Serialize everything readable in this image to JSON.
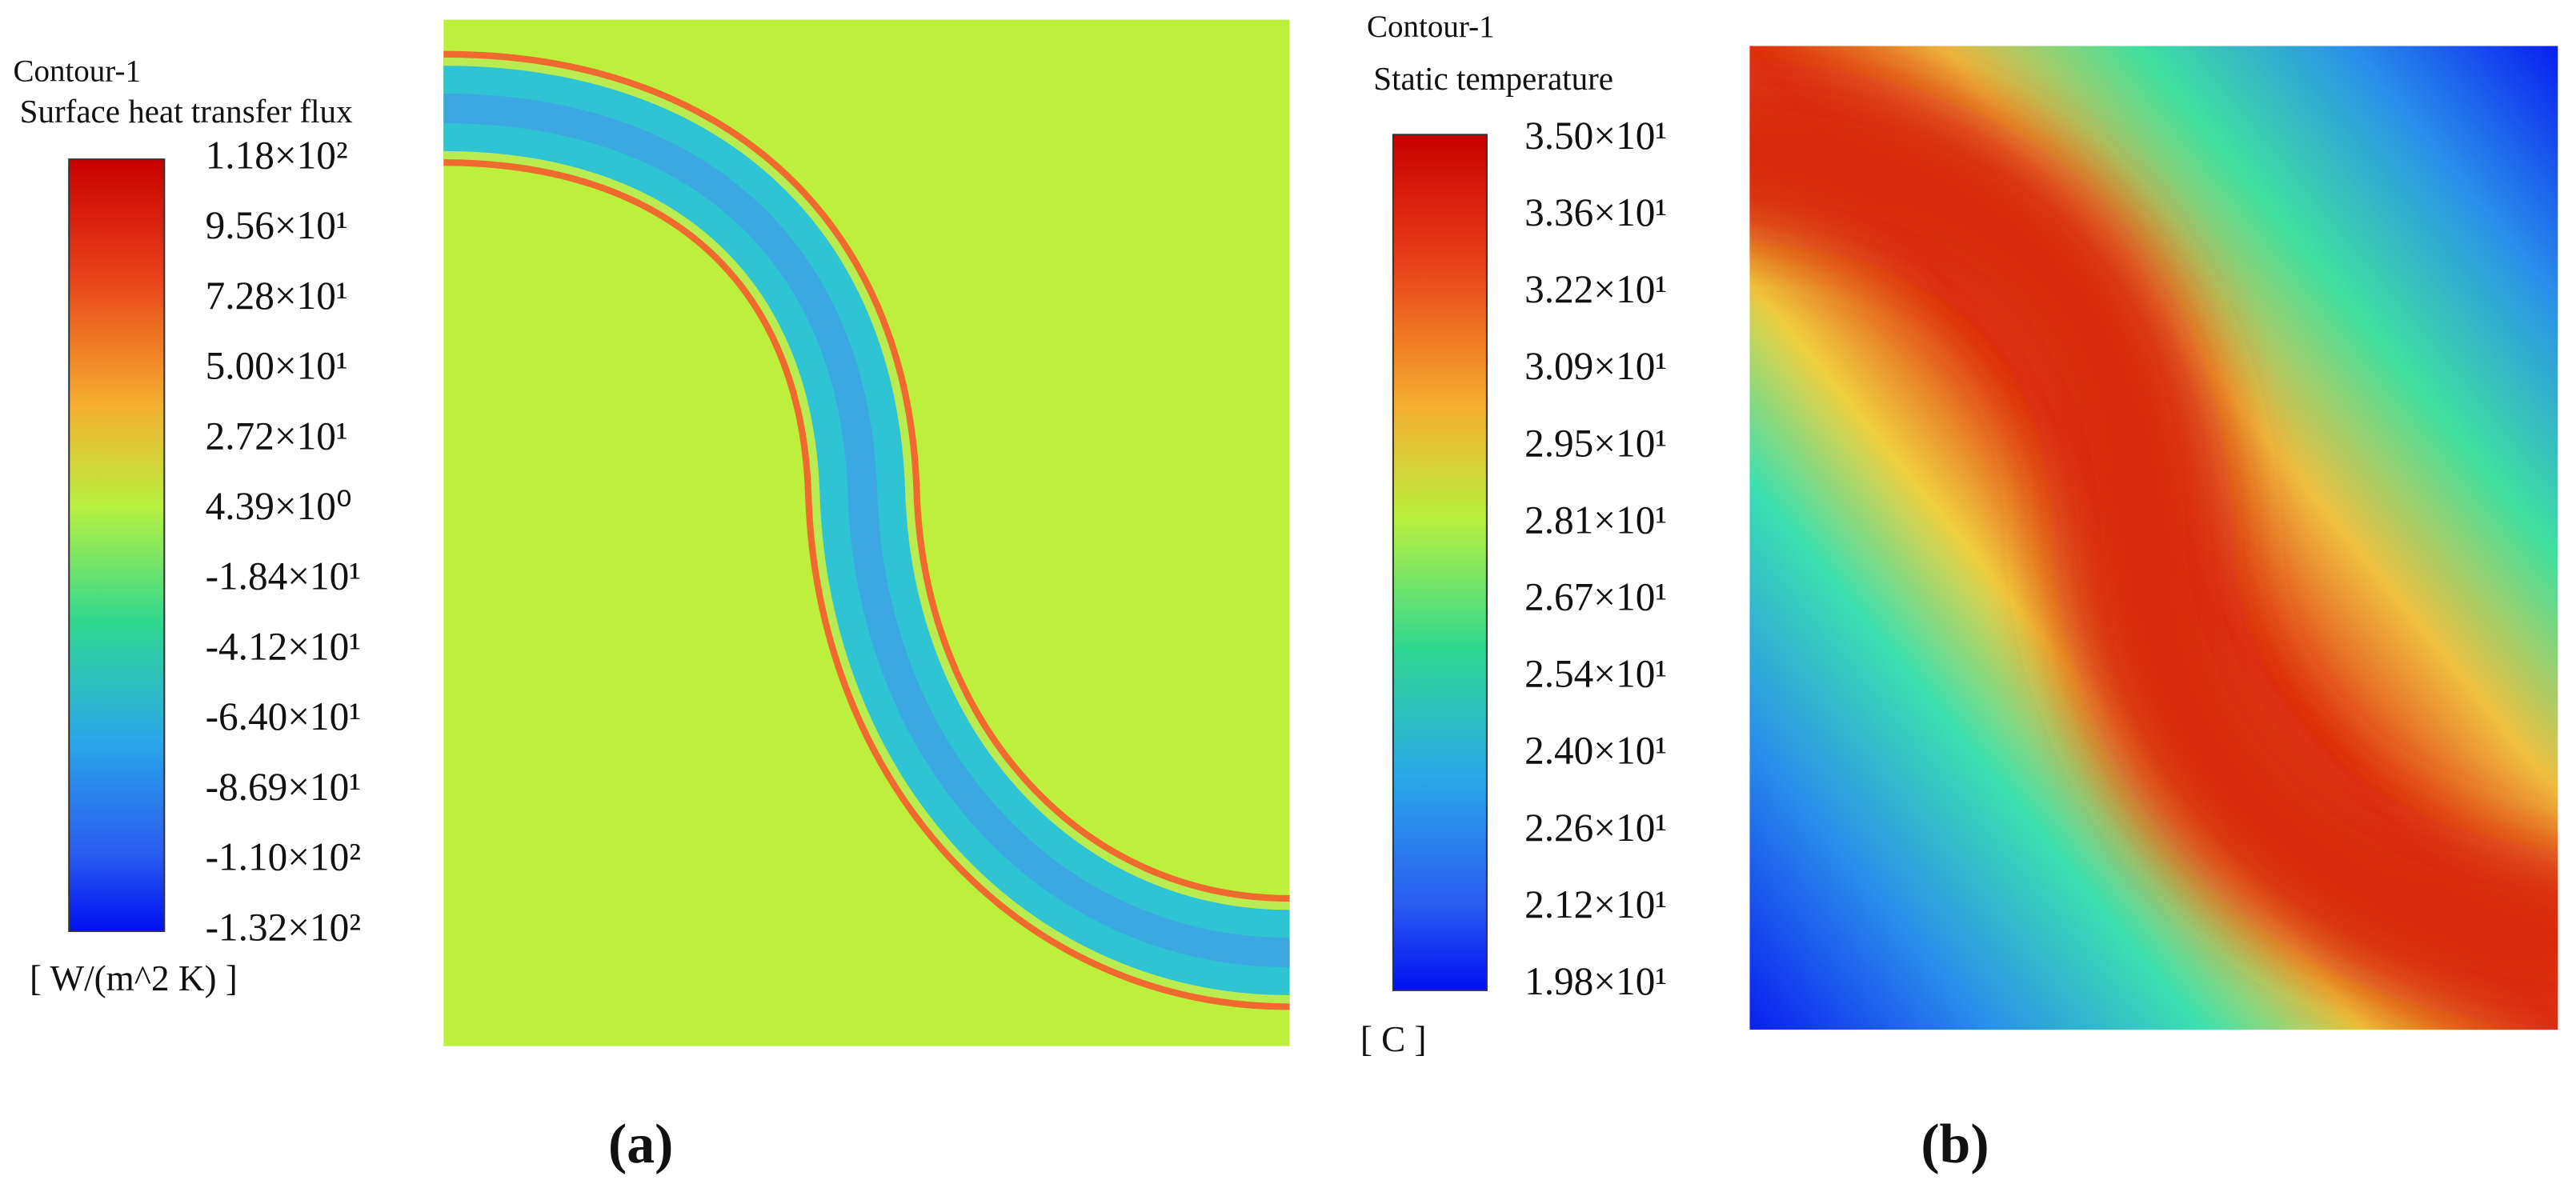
{
  "panels": [
    {
      "contour": "Contour-1",
      "variable": "Surface heat transfer flux",
      "unit": "[ W/(m^2 K) ]",
      "ticks": [
        "1.18×10²",
        "9.56×10¹",
        "7.28×10¹",
        "5.00×10¹",
        "2.72×10¹",
        "4.39×10⁰",
        "-1.84×10¹",
        "-4.12×10¹",
        "-6.40×10¹",
        "-8.69×10¹",
        "-1.10×10²",
        "-1.32×10²"
      ],
      "caption": "(a)"
    },
    {
      "contour": "Contour-1",
      "variable": "Static temperature",
      "unit": "[ C ]",
      "ticks": [
        "3.50×10¹",
        "3.36×10¹",
        "3.22×10¹",
        "3.09×10¹",
        "2.95×10¹",
        "2.81×10¹",
        "2.67×10¹",
        "2.54×10¹",
        "2.40×10¹",
        "2.26×10¹",
        "2.12×10¹",
        "1.98×10¹"
      ],
      "caption": "(b)"
    }
  ]
}
